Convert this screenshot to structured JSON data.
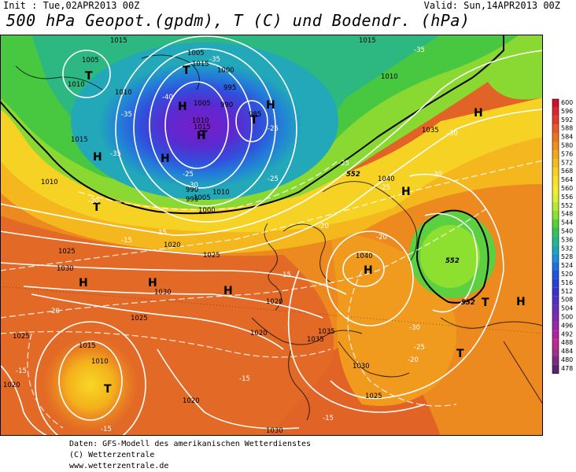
{
  "header": {
    "init": "Init : Tue,02APR2013 00Z",
    "valid": "Valid: Sun,14APR2013 00Z",
    "title": "500 hPa Geopot.(gpdm), T (C) und Bodendr. (hPa)"
  },
  "footer": {
    "line1": "Daten: GFS-Modell des amerikanischen Wetterdienstes",
    "line2": "(C) Wetterzentrale",
    "line3": "www.wetterzentrale.de"
  },
  "legend": {
    "values": [
      "600",
      "596",
      "592",
      "588",
      "584",
      "580",
      "576",
      "572",
      "568",
      "564",
      "560",
      "556",
      "552",
      "548",
      "544",
      "540",
      "536",
      "532",
      "528",
      "524",
      "520",
      "516",
      "512",
      "508",
      "504",
      "500",
      "496",
      "492",
      "488",
      "484",
      "480",
      "478"
    ],
    "colors": [
      "#d0102a",
      "#dc2530",
      "#e43a2c",
      "#e85a28",
      "#ec7620",
      "#f0901c",
      "#f4a81c",
      "#f6bc1e",
      "#f8d024",
      "#f8e028",
      "#f4ec2c",
      "#e0f030",
      "#b8ea30",
      "#8ee030",
      "#58d038",
      "#34c25a",
      "#22b88a",
      "#1aa8b8",
      "#1c90d8",
      "#1e70e0",
      "#2054dc",
      "#2a40d4",
      "#3a34cc",
      "#5030c4",
      "#6a2cbc",
      "#8428b4",
      "#9c26a8",
      "#b0249a",
      "#bc2a8c",
      "#a03088",
      "#7c2c80",
      "#5c2470"
    ]
  },
  "map": {
    "high_labels": [
      "H",
      "H",
      "H",
      "H",
      "H",
      "H",
      "H",
      "H",
      "H",
      "H",
      "H",
      "H"
    ],
    "low_labels": [
      "T",
      "T",
      "T",
      "T",
      "T",
      "T",
      "T",
      "T"
    ],
    "pressure_labels": [
      "1015",
      "1005",
      "1010",
      "1005",
      "1015",
      "1015",
      "1000",
      "995",
      "990",
      "1005",
      "985",
      "1010",
      "1010",
      "1015",
      "1010",
      "1015",
      "1010",
      "1020",
      "1025",
      "1030",
      "1025",
      "1030",
      "1015",
      "1010",
      "1025",
      "1020",
      "1020",
      "1025",
      "1035",
      "1035",
      "1030",
      "1025",
      "1020",
      "1040",
      "1035",
      "1040",
      "1010",
      "1005",
      "990",
      "995",
      "1000",
      "1020",
      "1030"
    ],
    "temp_labels": [
      "-35",
      "-40",
      "-35",
      "-35",
      "-35",
      "-25",
      "-30",
      "-25",
      "-25",
      "-30",
      "-25",
      "-20",
      "-20",
      "-15",
      "-15",
      "-15",
      "-20",
      "-20",
      "-15",
      "-25",
      "-30",
      "-30",
      "-25",
      "-20",
      "-15",
      "-15",
      "-15"
    ],
    "geopot_labels": [
      "552",
      "552",
      "552"
    ]
  }
}
